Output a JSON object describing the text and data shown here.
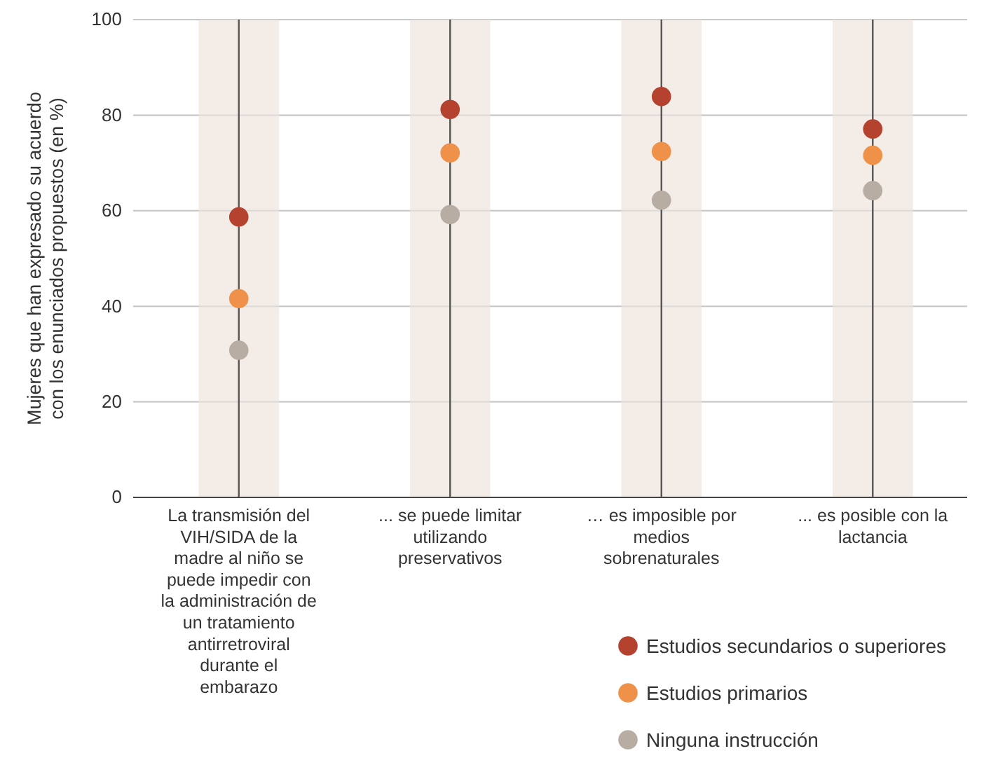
{
  "chart_data": {
    "type": "scatter",
    "ylabel": "Mujeres que han expresado su acuerdo con los enunciados propuestos (en %)",
    "categories": [
      "La transmisión del VIH/SIDA de la madre al niño se puede impedir con la administración de un tratamiento antirretroviral durante el embarazo",
      "... se puede limitar utilizando preservativos",
      "… es imposible por medios sobrenaturales",
      "... es posible con la lactancia"
    ],
    "series": [
      {
        "type": "bar",
        "color": "#f3ece7",
        "values": [
          100,
          100,
          100,
          100
        ]
      },
      {
        "name": "Estudios secundarios o superiores",
        "color": "#b5412f",
        "values": [
          58.7,
          81.2,
          83.9,
          77.1
        ]
      },
      {
        "name": "Estudios primarios",
        "color": "#f0914a",
        "values": [
          41.6,
          72.1,
          72.4,
          71.6
        ]
      },
      {
        "name": "Ninguna instrucción",
        "color": "#b8ada3",
        "values": [
          30.8,
          59.2,
          62.2,
          64.2
        ]
      }
    ],
    "ylim": [
      0,
      100
    ],
    "yticks": [
      0,
      20,
      40,
      60,
      80,
      100
    ],
    "grid": true,
    "legend": "bottom right",
    "marker": "circle"
  }
}
